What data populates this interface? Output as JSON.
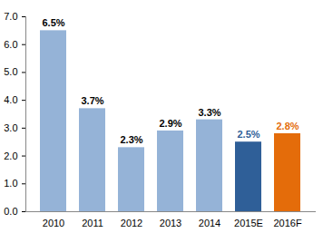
{
  "chart_data": {
    "type": "bar",
    "categories": [
      "2010",
      "2011",
      "2012",
      "2013",
      "2014",
      "2015E",
      "2016F"
    ],
    "values": [
      6.5,
      3.7,
      2.3,
      2.9,
      3.3,
      2.5,
      2.8
    ],
    "value_labels": [
      "6.5%",
      "3.7%",
      "2.3%",
      "2.9%",
      "3.3%",
      "2.5%",
      "2.8%"
    ],
    "colors": [
      "#95b3d7",
      "#95b3d7",
      "#95b3d7",
      "#95b3d7",
      "#95b3d7",
      "#2f5f98",
      "#e46c0a"
    ],
    "data_labels": true,
    "grid": false,
    "ylim": [
      0,
      7
    ],
    "yticks": [
      0,
      1,
      2,
      3,
      4,
      5,
      6,
      7
    ]
  }
}
